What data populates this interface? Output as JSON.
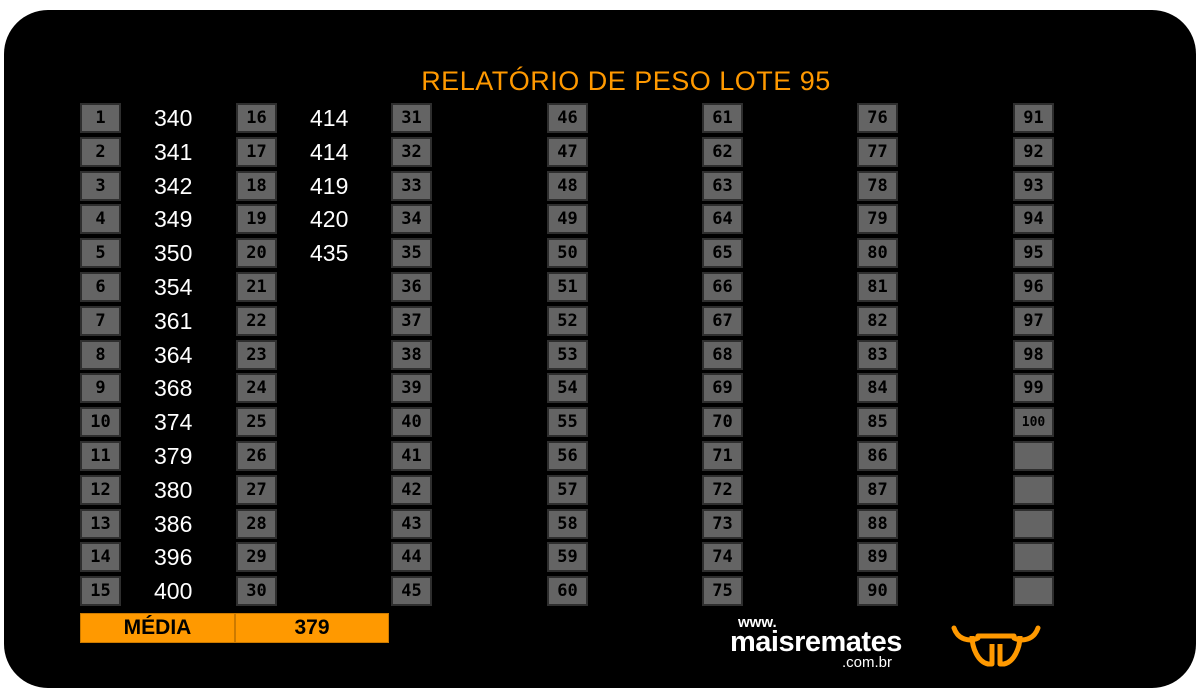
{
  "title": "RELATÓRIO DE PESO LOTE 95",
  "columns": [
    {
      "numbers": [
        "1",
        "2",
        "3",
        "4",
        "5",
        "6",
        "7",
        "8",
        "9",
        "10",
        "11",
        "12",
        "13",
        "14",
        "15"
      ],
      "weights": [
        "340",
        "341",
        "342",
        "349",
        "350",
        "354",
        "361",
        "364",
        "368",
        "374",
        "379",
        "380",
        "386",
        "396",
        "400"
      ]
    },
    {
      "numbers": [
        "16",
        "17",
        "18",
        "19",
        "20",
        "21",
        "22",
        "23",
        "24",
        "25",
        "26",
        "27",
        "28",
        "29",
        "30"
      ],
      "weights": [
        "414",
        "414",
        "419",
        "420",
        "435",
        "",
        "",
        "",
        "",
        "",
        "",
        "",
        "",
        "",
        ""
      ]
    },
    {
      "numbers": [
        "31",
        "32",
        "33",
        "34",
        "35",
        "36",
        "37",
        "38",
        "39",
        "40",
        "41",
        "42",
        "43",
        "44",
        "45"
      ],
      "weights": []
    },
    {
      "numbers": [
        "46",
        "47",
        "48",
        "49",
        "50",
        "51",
        "52",
        "53",
        "54",
        "55",
        "56",
        "57",
        "58",
        "59",
        "60"
      ],
      "weights": []
    },
    {
      "numbers": [
        "61",
        "62",
        "63",
        "64",
        "65",
        "66",
        "67",
        "68",
        "69",
        "70",
        "71",
        "72",
        "73",
        "74",
        "75"
      ],
      "weights": []
    },
    {
      "numbers": [
        "76",
        "77",
        "78",
        "79",
        "80",
        "81",
        "82",
        "83",
        "84",
        "85",
        "86",
        "87",
        "88",
        "89",
        "90"
      ],
      "weights": []
    },
    {
      "numbers": [
        "91",
        "92",
        "93",
        "94",
        "95",
        "96",
        "97",
        "98",
        "99",
        "100",
        "",
        "",
        "",
        "",
        ""
      ],
      "weights": []
    }
  ],
  "media": {
    "label": "MÉDIA",
    "value": "379"
  },
  "brand": {
    "www": "www.",
    "name": "maisremates",
    "domain": ".com.br"
  },
  "colors": {
    "accent": "#ff9900",
    "cell": "#646464",
    "background": "#000000"
  },
  "icons": {
    "logo": "bull-head-icon"
  }
}
